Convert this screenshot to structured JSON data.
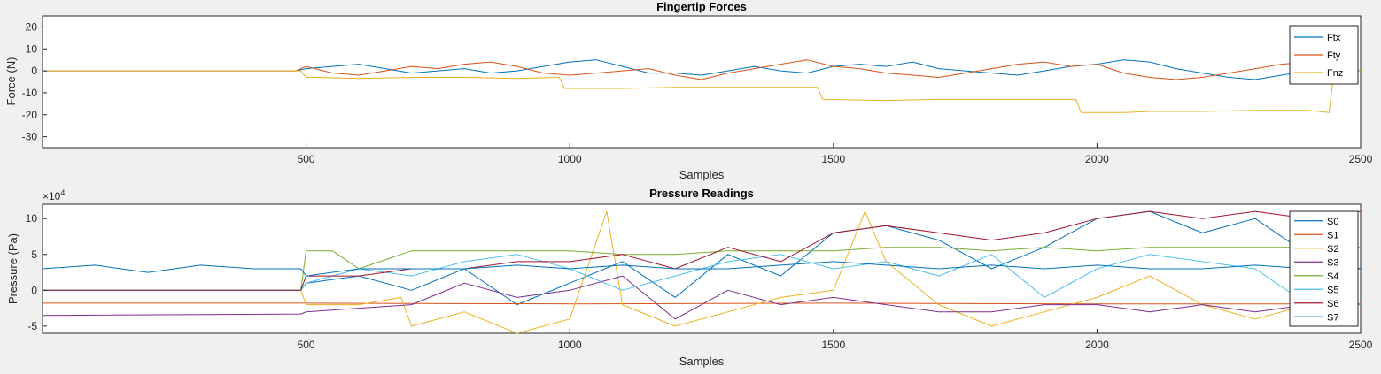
{
  "chart_data": [
    {
      "type": "line",
      "title": "Fingertip Forces",
      "xlabel": "Samples",
      "ylabel": "Force (N)",
      "xlim": [
        0,
        2500
      ],
      "ylim": [
        -35,
        25
      ],
      "xticks": [
        500,
        1000,
        1500,
        2000,
        2500
      ],
      "yticks": [
        -30,
        -20,
        -10,
        0,
        10,
        20
      ],
      "grid": false,
      "legend_position": "top-right",
      "series": [
        {
          "name": "Ftx",
          "color": "#0072BD",
          "x": [
            0,
            480,
            500,
            550,
            600,
            650,
            700,
            750,
            800,
            850,
            900,
            950,
            1000,
            1050,
            1100,
            1150,
            1200,
            1250,
            1300,
            1350,
            1400,
            1450,
            1500,
            1550,
            1600,
            1650,
            1700,
            1750,
            1800,
            1850,
            1900,
            1950,
            2000,
            2050,
            2100,
            2150,
            2200,
            2250,
            2300,
            2350,
            2400,
            2450,
            2500
          ],
          "y": [
            0,
            0,
            1,
            2,
            3,
            1,
            -1,
            0,
            1,
            -1,
            0,
            2,
            4,
            5,
            2,
            -1,
            -1,
            -2,
            0,
            2,
            0,
            -1,
            2,
            3,
            2,
            4,
            1,
            0,
            -1,
            -2,
            0,
            2,
            3,
            5,
            4,
            1,
            -1,
            -3,
            -4,
            -2,
            0,
            1,
            0
          ]
        },
        {
          "name": "Fty",
          "color": "#D95319",
          "x": [
            0,
            480,
            500,
            550,
            600,
            650,
            700,
            750,
            800,
            850,
            900,
            950,
            1000,
            1050,
            1100,
            1150,
            1200,
            1250,
            1300,
            1350,
            1400,
            1450,
            1500,
            1550,
            1600,
            1650,
            1700,
            1750,
            1800,
            1850,
            1900,
            1950,
            2000,
            2050,
            2100,
            2150,
            2200,
            2250,
            2300,
            2350,
            2400,
            2450,
            2500
          ],
          "y": [
            0,
            0,
            2,
            -1,
            -2,
            0,
            2,
            1,
            3,
            4,
            2,
            -1,
            -2,
            -1,
            0,
            1,
            -2,
            -4,
            -1,
            1,
            3,
            5,
            2,
            1,
            -1,
            -2,
            -3,
            -1,
            1,
            3,
            4,
            2,
            3,
            -1,
            -3,
            -4,
            -3,
            -1,
            1,
            3,
            4,
            2,
            0
          ]
        },
        {
          "name": "Fnz",
          "color": "#EDB120",
          "x": [
            0,
            490,
            500,
            520,
            600,
            700,
            800,
            900,
            980,
            990,
            1100,
            1200,
            1300,
            1400,
            1470,
            1480,
            1600,
            1700,
            1800,
            1900,
            1960,
            1970,
            2050,
            2100,
            2200,
            2300,
            2400,
            2440,
            2450,
            2500
          ],
          "y": [
            0,
            0,
            -3,
            -3,
            -3.5,
            -3,
            -3,
            -3.5,
            -3,
            -8,
            -8,
            -7.5,
            -7.5,
            -7.5,
            -7.5,
            -13,
            -13.5,
            -13,
            -13,
            -13,
            -13,
            -19,
            -19,
            -18.5,
            -18.5,
            -18,
            -18,
            -19,
            0,
            0
          ]
        }
      ]
    },
    {
      "type": "line",
      "title": "Pressure Readings",
      "xlabel": "Samples",
      "ylabel": "Pressure (Pa)",
      "y_exponent_label": "×10",
      "y_exponent_power": "4",
      "xlim": [
        0,
        2500
      ],
      "ylim": [
        -6,
        12
      ],
      "xticks": [
        500,
        1000,
        1500,
        2000,
        2500
      ],
      "yticks": [
        -5,
        0,
        5,
        10
      ],
      "grid": false,
      "legend_position": "top-right",
      "series": [
        {
          "name": "S0",
          "color": "#0072BD",
          "x": [
            0,
            490,
            500,
            600,
            700,
            800,
            900,
            1000,
            1100,
            1200,
            1300,
            1400,
            1500,
            1600,
            1700,
            1800,
            1900,
            2000,
            2100,
            2200,
            2300,
            2400,
            2500
          ],
          "y": [
            0,
            0,
            1,
            2,
            0,
            3,
            -2,
            1,
            4,
            -1,
            5,
            2,
            8,
            9,
            7,
            3,
            6,
            10,
            11,
            8,
            10,
            5,
            3
          ]
        },
        {
          "name": "S1",
          "color": "#D95319",
          "x": [
            0,
            500,
            1000,
            1500,
            2000,
            2500
          ],
          "y": [
            -1.8,
            -1.8,
            -1.9,
            -1.8,
            -1.9,
            -1.9
          ]
        },
        {
          "name": "S2",
          "color": "#EDB120",
          "x": [
            0,
            490,
            500,
            600,
            680,
            700,
            800,
            900,
            1000,
            1070,
            1100,
            1200,
            1300,
            1400,
            1500,
            1560,
            1600,
            1700,
            1800,
            1900,
            2000,
            2100,
            2200,
            2300,
            2400,
            2500
          ],
          "y": [
            0,
            0,
            -2,
            -2,
            -1,
            -5,
            -3,
            -6,
            -4,
            11,
            -2,
            -5,
            -3,
            -1,
            0,
            11,
            4,
            -2,
            -5,
            -3,
            -1,
            2,
            -2,
            -4,
            -2,
            -2
          ]
        },
        {
          "name": "S3",
          "color": "#7E2F8E",
          "x": [
            0,
            490,
            500,
            600,
            700,
            800,
            900,
            1000,
            1100,
            1200,
            1300,
            1400,
            1500,
            1600,
            1700,
            1800,
            1900,
            2000,
            2100,
            2200,
            2300,
            2400,
            2500
          ],
          "y": [
            -3.5,
            -3.3,
            -3,
            -2.5,
            -2,
            1,
            -1,
            0,
            2,
            -4,
            0,
            -2,
            -1,
            -2,
            -3,
            -3,
            -2,
            -2,
            -3,
            -2,
            -3,
            -2,
            -2
          ]
        },
        {
          "name": "S4",
          "color": "#77AC30",
          "x": [
            0,
            490,
            500,
            550,
            600,
            700,
            800,
            900,
            1000,
            1100,
            1200,
            1300,
            1400,
            1500,
            1600,
            1700,
            1800,
            1900,
            2000,
            2100,
            2200,
            2300,
            2400,
            2500
          ],
          "y": [
            0,
            0,
            5.5,
            5.5,
            3,
            5.5,
            5.5,
            5.5,
            5.5,
            5,
            5,
            5.5,
            5.5,
            5.5,
            6,
            6,
            5.5,
            6,
            5.5,
            6,
            6,
            6,
            6,
            6
          ]
        },
        {
          "name": "S5",
          "color": "#4DBEEE",
          "x": [
            0,
            490,
            500,
            600,
            700,
            800,
            900,
            1000,
            1100,
            1200,
            1300,
            1400,
            1500,
            1600,
            1700,
            1800,
            1900,
            2000,
            2100,
            2200,
            2300,
            2400,
            2500
          ],
          "y": [
            0,
            0,
            1,
            3,
            2,
            4,
            5,
            3,
            0,
            2,
            4,
            5,
            3,
            4,
            2,
            5,
            -1,
            3,
            5,
            4,
            3,
            -2,
            -2
          ]
        },
        {
          "name": "S6",
          "color": "#A2142F",
          "x": [
            0,
            490,
            500,
            600,
            700,
            800,
            900,
            1000,
            1100,
            1200,
            1300,
            1400,
            1500,
            1600,
            1700,
            1800,
            1900,
            2000,
            2100,
            2200,
            2300,
            2400,
            2500
          ],
          "y": [
            0,
            0,
            2,
            2,
            3,
            3,
            4,
            4,
            5,
            3,
            6,
            4,
            8,
            9,
            8,
            7,
            8,
            10,
            11,
            10,
            11,
            10,
            11
          ]
        },
        {
          "name": "S7",
          "color": "#0072BD",
          "x": [
            0,
            100,
            200,
            300,
            400,
            490,
            500,
            600,
            700,
            800,
            900,
            1000,
            1100,
            1200,
            1300,
            1400,
            1500,
            1600,
            1700,
            1800,
            1900,
            2000,
            2100,
            2200,
            2300,
            2400,
            2500
          ],
          "y": [
            3,
            3.5,
            2.5,
            3.5,
            3,
            3,
            2,
            3,
            3,
            3,
            3.5,
            3,
            3.5,
            3,
            3,
            3.5,
            4,
            3.5,
            3,
            3.5,
            3,
            3.5,
            3,
            3,
            3.5,
            3,
            3
          ]
        }
      ]
    }
  ]
}
